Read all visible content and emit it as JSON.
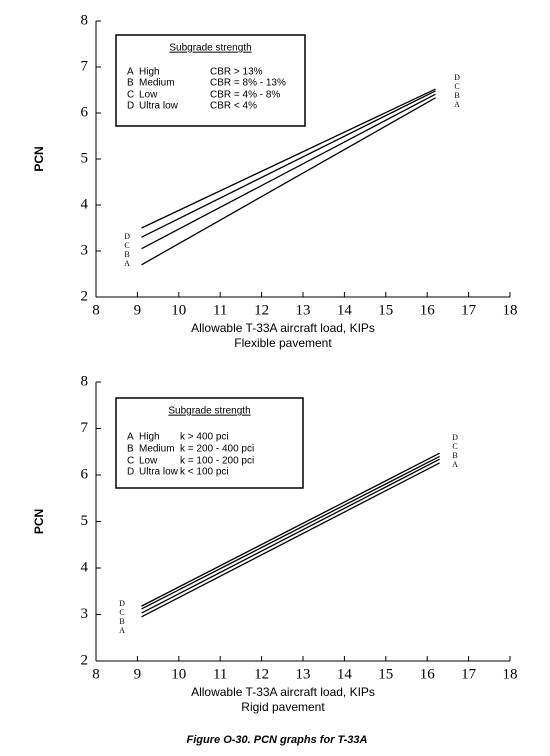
{
  "chart_data": [
    {
      "type": "line",
      "xlabel": "Allowable T-33A aircraft load, KIPs",
      "subtitle": "Flexible pavement",
      "ylabel": "PCN",
      "xlim": [
        8,
        18
      ],
      "xticks": [
        8,
        9,
        10,
        11,
        12,
        13,
        14,
        15,
        16,
        17,
        18
      ],
      "ylim": [
        2,
        8
      ],
      "yticks": [
        2,
        3,
        4,
        5,
        6,
        7,
        8
      ],
      "legend_title": "Subgrade strength",
      "series": [
        {
          "name": "A",
          "description": "High",
          "criterion": "CBR > 13%",
          "color": "#000000",
          "x": [
            9.1,
            16.2
          ],
          "values": [
            2.7,
            6.33
          ]
        },
        {
          "name": "B",
          "description": "Medium",
          "criterion": "CBR = 8% - 13%",
          "color": "#000000",
          "x": [
            9.1,
            16.2
          ],
          "values": [
            3.05,
            6.41
          ]
        },
        {
          "name": "C",
          "description": "Low",
          "criterion": "CBR = 4% - 8%",
          "color": "#000000",
          "x": [
            9.1,
            16.2
          ],
          "values": [
            3.3,
            6.48
          ]
        },
        {
          "name": "D",
          "description": "Ultra low",
          "criterion": "CBR < 4%",
          "color": "#000000",
          "x": [
            9.1,
            16.2
          ],
          "values": [
            3.5,
            6.52
          ]
        }
      ]
    },
    {
      "type": "line",
      "xlabel": "Allowable T-33A aircraft load, KIPs",
      "subtitle": "Rigid pavement",
      "ylabel": "PCN",
      "xlim": [
        8,
        18
      ],
      "xticks": [
        8,
        9,
        10,
        11,
        12,
        13,
        14,
        15,
        16,
        17,
        18
      ],
      "ylim": [
        2,
        8
      ],
      "yticks": [
        2,
        3,
        4,
        5,
        6,
        7,
        8
      ],
      "legend_title": "Subgrade strength",
      "series": [
        {
          "name": "A",
          "description": "High",
          "criterion": "k > 400 pci",
          "color": "#000000",
          "x": [
            9.1,
            16.3
          ],
          "values": [
            2.95,
            6.26
          ]
        },
        {
          "name": "B",
          "description": "Medium",
          "criterion": "k = 200 - 400 pci",
          "color": "#000000",
          "x": [
            9.1,
            16.3
          ],
          "values": [
            3.03,
            6.34
          ]
        },
        {
          "name": "C",
          "description": "Low",
          "criterion": "k = 100 - 200 pci",
          "color": "#000000",
          "x": [
            9.1,
            16.3
          ],
          "values": [
            3.12,
            6.4
          ]
        },
        {
          "name": "D",
          "description": "Ultra low",
          "criterion": "k < 100 pci",
          "color": "#000000",
          "x": [
            9.1,
            16.3
          ],
          "values": [
            3.18,
            6.47
          ]
        }
      ]
    }
  ],
  "caption": "Figure O-30.  PCN graphs for T-33A"
}
